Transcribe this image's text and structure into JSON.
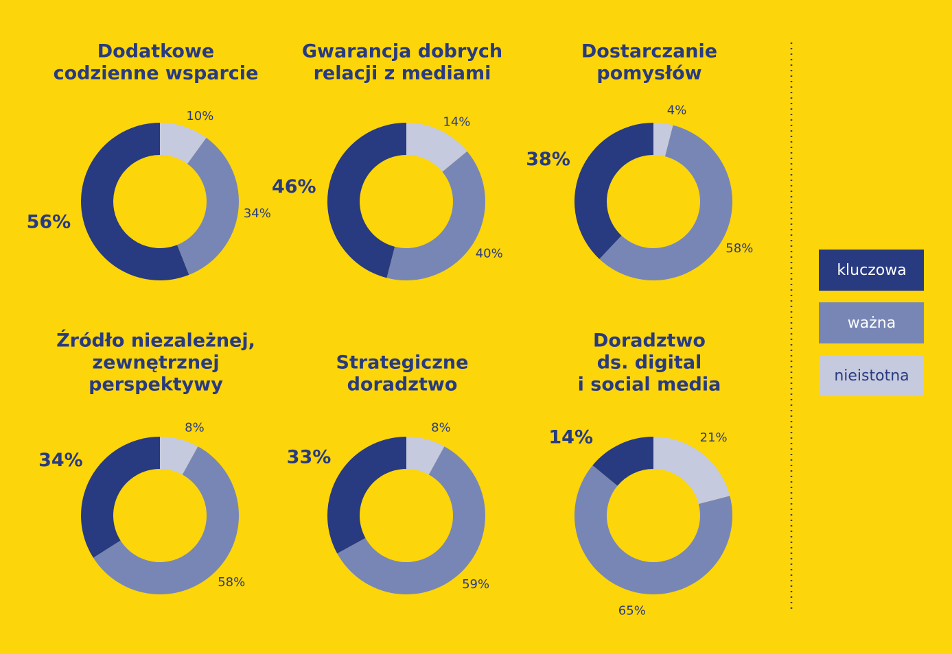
{
  "chart_data": [
    {
      "type": "donut",
      "title": [
        "Dodatkowe",
        "codzienne wsparcie"
      ],
      "values": [
        56,
        34,
        10
      ],
      "value_labels": [
        "56%",
        "34%",
        "10%"
      ]
    },
    {
      "type": "donut",
      "title": [
        "Gwarancja dobrych",
        "relacji z mediami"
      ],
      "values": [
        46,
        40,
        14
      ],
      "value_labels": [
        "46%",
        "40%",
        "14%"
      ]
    },
    {
      "type": "donut",
      "title": [
        "Dostarczanie",
        "pomysłów"
      ],
      "values": [
        38,
        58,
        4
      ],
      "value_labels": [
        "38%",
        "58%",
        "4%"
      ]
    },
    {
      "type": "donut",
      "title": [
        "Źródło niezależnej,",
        "zewnętrznej",
        "perspektywy"
      ],
      "values": [
        34,
        58,
        8
      ],
      "value_labels": [
        "34%",
        "58%",
        "8%"
      ]
    },
    {
      "type": "donut",
      "title": [
        "Strategiczne",
        "doradztwo"
      ],
      "values": [
        33,
        59,
        8
      ],
      "value_labels": [
        "33%",
        "59%",
        "8%"
      ]
    },
    {
      "type": "donut",
      "title": [
        "Doradztwo",
        "ds. digital",
        "i social media"
      ],
      "values": [
        14,
        65,
        21
      ],
      "value_labels": [
        "14%",
        "65%",
        "21%"
      ]
    }
  ],
  "legend": {
    "labels": [
      "kluczowa",
      "ważna",
      "nieistotna"
    ],
    "colors": [
      "#283a80",
      "#7886b6",
      "#c6cade"
    ],
    "text_colors": [
      "#ffffff",
      "#ffffff",
      "#283a80"
    ]
  }
}
